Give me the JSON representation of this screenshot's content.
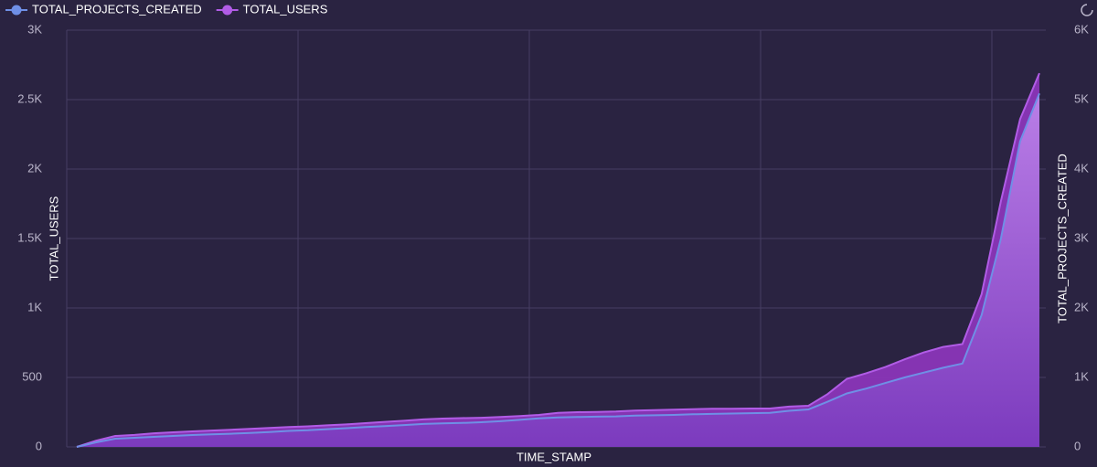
{
  "chart_data": {
    "type": "area",
    "xlabel": "TIME_STAMP",
    "ylabel": "TOTAL_USERS",
    "y2label": "TOTAL_PROJECTS_CREATED",
    "categories": [
      null,
      null,
      null,
      null,
      null,
      null,
      null,
      null,
      null,
      null,
      null,
      null,
      null,
      null,
      null,
      null,
      null,
      null,
      null,
      null,
      null,
      null,
      null,
      null,
      null,
      null,
      null,
      null,
      null,
      null,
      null,
      null,
      null,
      null,
      null,
      null,
      null,
      null,
      null,
      null,
      null,
      null,
      null,
      null,
      null,
      null,
      null,
      null,
      null,
      null,
      null
    ],
    "series": [
      {
        "name": "TOTAL_PROJECTS_CREATED",
        "color": "#6f8fe6",
        "axis": "y2",
        "values": [
          0,
          66,
          118,
          132,
          145,
          158,
          171,
          180,
          190,
          200,
          215,
          230,
          240,
          255,
          270,
          285,
          300,
          315,
          330,
          340,
          345,
          355,
          370,
          390,
          410,
          425,
          430,
          435,
          440,
          450,
          455,
          460,
          470,
          475,
          480,
          485,
          490,
          520,
          540,
          650,
          770,
          840,
          920,
          1000,
          1070,
          1140,
          1200,
          1900,
          3000,
          4400,
          5090
        ]
      },
      {
        "name": "TOTAL_USERS",
        "color": "#b15ce6",
        "values": [
          0,
          45,
          79,
          86,
          98,
          105,
          112,
          118,
          124,
          130,
          137,
          143,
          148,
          155,
          162,
          171,
          180,
          188,
          198,
          204,
          207,
          210,
          215,
          222,
          230,
          245,
          250,
          252,
          255,
          262,
          265,
          268,
          272,
          275,
          275,
          276,
          276,
          290,
          296,
          380,
          490,
          530,
          575,
          630,
          680,
          720,
          740,
          1100,
          1770,
          2360,
          2690
        ]
      }
    ],
    "ylim": [
      0,
      3000
    ],
    "yticks": [
      0,
      500,
      {
        "value": 1000,
        "label": "1K"
      },
      {
        "value": 1500,
        "label": "1.5K"
      },
      {
        "value": 2000,
        "label": "2K"
      },
      {
        "value": 2500,
        "label": "2.5K"
      },
      {
        "value": 3000,
        "label": "3K"
      }
    ],
    "y2lim": [
      0,
      6000
    ],
    "y2ticks": [
      0,
      {
        "value": 1000,
        "label": "1K"
      },
      {
        "value": 2000,
        "label": "2K"
      },
      {
        "value": 3000,
        "label": "3K"
      },
      {
        "value": 4000,
        "label": "4K"
      },
      {
        "value": 5000,
        "label": "5K"
      },
      {
        "value": 6000,
        "label": "6K"
      }
    ],
    "grid": true,
    "legend": "top-left"
  }
}
